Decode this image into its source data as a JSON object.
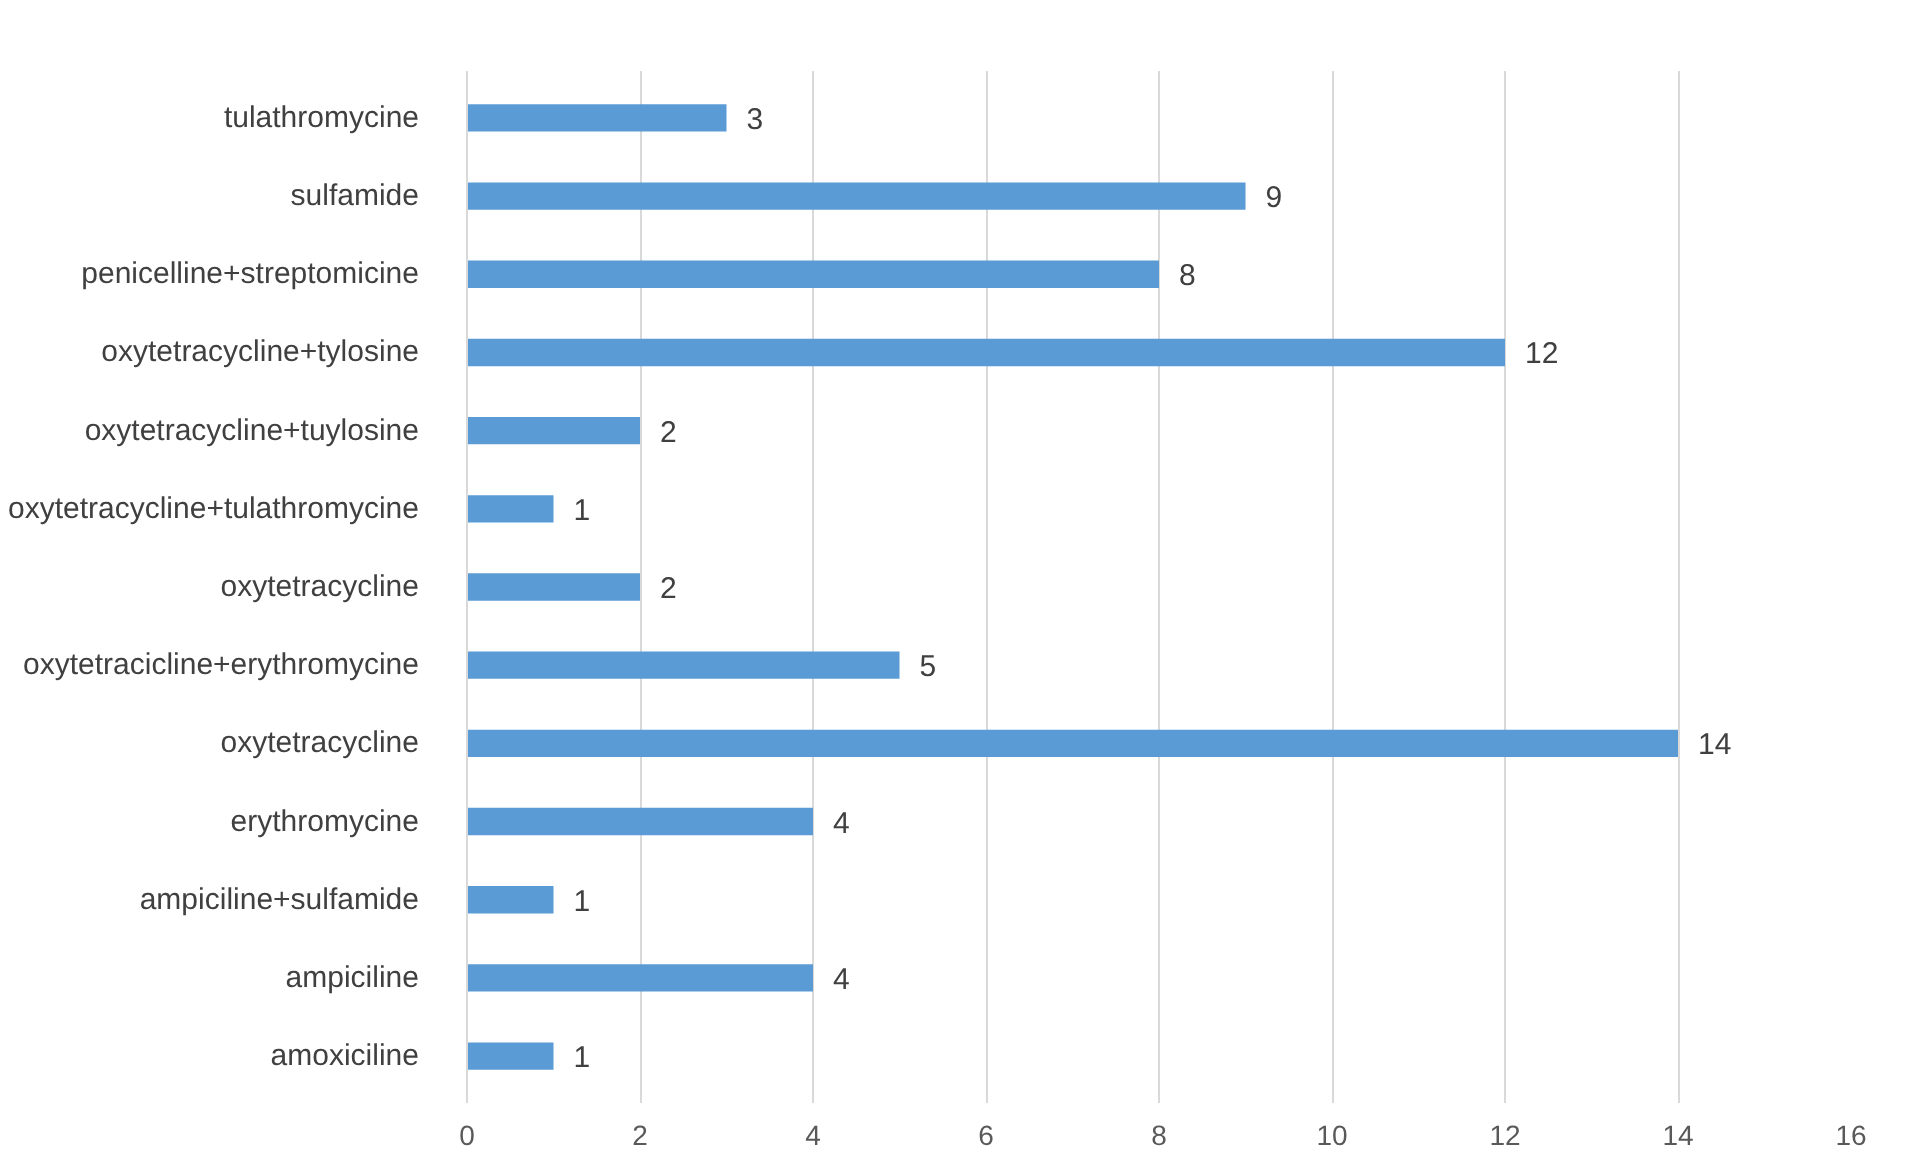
{
  "chart_data": {
    "type": "bar",
    "orientation": "horizontal",
    "categories": [
      "tulathromycine",
      "sulfamide",
      "penicelline+streptomicine",
      "oxytetracycline+tylosine",
      "oxytetracycline+tuylosine",
      "oxytetracycline+tulathromycine",
      "oxytetracycline",
      "oxytetracicline+erythromycine",
      "oxytetracycline",
      "erythromycine",
      "ampiciline+sulfamide",
      "ampiciline",
      "amoxiciline"
    ],
    "values": [
      3,
      9,
      8,
      12,
      2,
      1,
      2,
      5,
      14,
      4,
      1,
      4,
      1
    ],
    "color": "#5b9bd5",
    "xlim": [
      0,
      16
    ],
    "xticks": [
      0,
      2,
      4,
      6,
      8,
      10,
      12,
      14,
      16
    ],
    "grid": "x",
    "data_labels": true
  }
}
